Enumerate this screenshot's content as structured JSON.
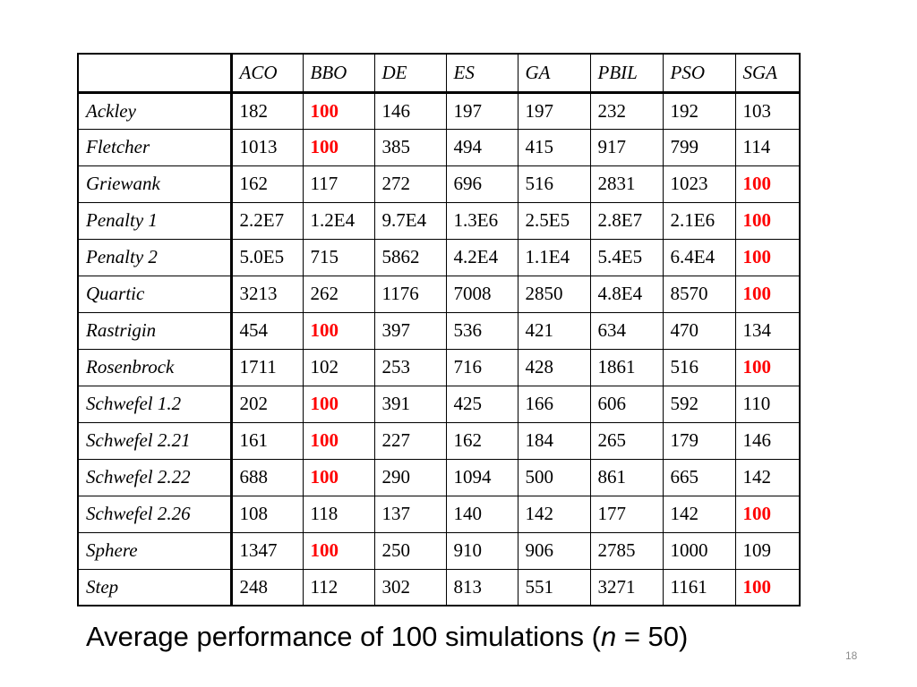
{
  "table": {
    "corner": "",
    "columns": [
      "ACO",
      "BBO",
      "DE",
      "ES",
      "GA",
      "PBIL",
      "PSO",
      "SGA"
    ],
    "rows": [
      {
        "name": "Ackley",
        "values": [
          "182",
          "100",
          "146",
          "197",
          "197",
          "232",
          "192",
          "103"
        ],
        "best_index": 1
      },
      {
        "name": "Fletcher",
        "values": [
          "1013",
          "100",
          "385",
          "494",
          "415",
          "917",
          "799",
          "114"
        ],
        "best_index": 1
      },
      {
        "name": "Griewank",
        "values": [
          "162",
          "117",
          "272",
          "696",
          "516",
          "2831",
          "1023",
          "100"
        ],
        "best_index": 7
      },
      {
        "name": "Penalty 1",
        "values": [
          "2.2E7",
          "1.2E4",
          "9.7E4",
          "1.3E6",
          "2.5E5",
          "2.8E7",
          "2.1E6",
          "100"
        ],
        "best_index": 7
      },
      {
        "name": "Penalty 2",
        "values": [
          "5.0E5",
          "715",
          "5862",
          "4.2E4",
          "1.1E4",
          "5.4E5",
          "6.4E4",
          "100"
        ],
        "best_index": 7
      },
      {
        "name": "Quartic",
        "values": [
          "3213",
          "262",
          "1176",
          "7008",
          "2850",
          "4.8E4",
          "8570",
          "100"
        ],
        "best_index": 7
      },
      {
        "name": "Rastrigin",
        "values": [
          "454",
          "100",
          "397",
          "536",
          "421",
          "634",
          "470",
          "134"
        ],
        "best_index": 1
      },
      {
        "name": "Rosenbrock",
        "values": [
          "1711",
          "102",
          "253",
          "716",
          "428",
          "1861",
          "516",
          "100"
        ],
        "best_index": 7
      },
      {
        "name": "Schwefel 1.2",
        "values": [
          "202",
          "100",
          "391",
          "425",
          "166",
          "606",
          "592",
          "110"
        ],
        "best_index": 1
      },
      {
        "name": "Schwefel 2.21",
        "values": [
          "161",
          "100",
          "227",
          "162",
          "184",
          "265",
          "179",
          "146"
        ],
        "best_index": 1
      },
      {
        "name": "Schwefel 2.22",
        "values": [
          "688",
          "100",
          "290",
          "1094",
          "500",
          "861",
          "665",
          "142"
        ],
        "best_index": 1
      },
      {
        "name": "Schwefel 2.26",
        "values": [
          "108",
          "118",
          "137",
          "140",
          "142",
          "177",
          "142",
          "100"
        ],
        "best_index": 7
      },
      {
        "name": "Sphere",
        "values": [
          "1347",
          "100",
          "250",
          "910",
          "906",
          "2785",
          "1000",
          "109"
        ],
        "best_index": 1
      },
      {
        "name": "Step",
        "values": [
          "248",
          "112",
          "302",
          "813",
          "551",
          "3271",
          "1161",
          "100"
        ],
        "best_index": 7
      }
    ]
  },
  "caption": {
    "prefix": "Average performance of 100 simulations (",
    "variable": "n",
    "suffix": " = 50)"
  },
  "slide_number": "18",
  "colors": {
    "highlight": "#ff0000",
    "text": "#000000",
    "slide_number": "#8c8c8c"
  }
}
